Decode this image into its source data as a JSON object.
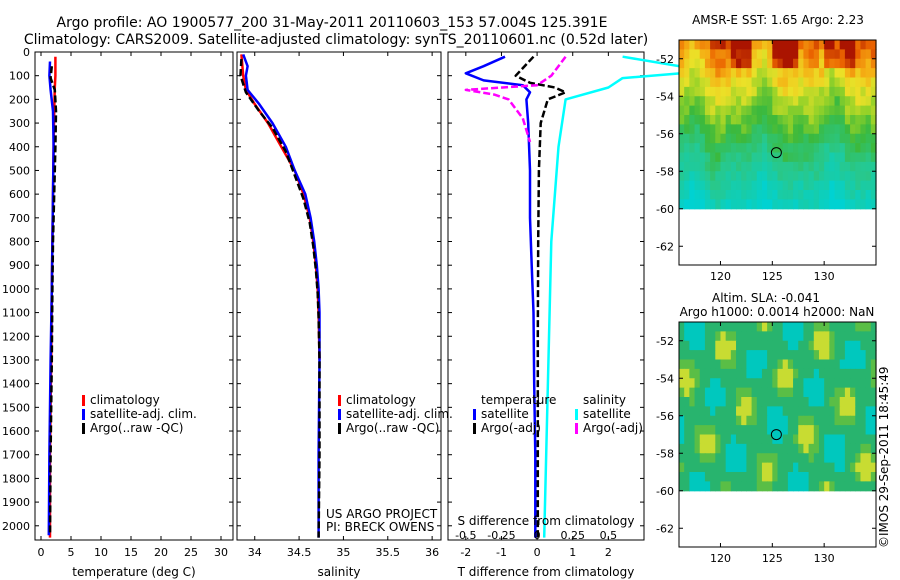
{
  "header": {
    "title_line1": "Argo profile: AO 1900577_200 31-May-2011 20110603_153 57.004S 125.391E",
    "title_line2": "Climatology: CARS2009. Satellite-adjusted climatology: synTS_20110601.nc (0.52d later)"
  },
  "credit": "©IMOS 29-Sep-2011 18:45:49",
  "colors": {
    "climatology": "#ff0000",
    "satellite": "#0000ff",
    "argo": "#000000",
    "salinity_satellite": "#00ffff",
    "salinity_argo": "#ff00ff"
  },
  "chart_data": [
    {
      "type": "line",
      "id": "temperature",
      "xlabel": "temperature (deg C)",
      "ylabel": "",
      "xlim": [
        -1,
        32
      ],
      "ylim": [
        0,
        2060
      ],
      "xticks": [
        0,
        5,
        10,
        15,
        20,
        25,
        30
      ],
      "yticks": [
        0,
        100,
        200,
        300,
        400,
        500,
        600,
        700,
        800,
        900,
        1000,
        1100,
        1200,
        1300,
        1400,
        1500,
        1600,
        1700,
        1800,
        1900,
        2000
      ],
      "legend": [
        "climatology",
        "satellite-adj. clim.",
        "Argo(..raw -QC)"
      ],
      "series": [
        {
          "name": "climatology",
          "x": [
            2.4,
            2.4,
            2.3,
            2.2,
            2.1,
            2.0,
            1.9,
            1.8,
            1.7,
            1.5,
            1.5
          ],
          "y": [
            20,
            100,
            150,
            250,
            400,
            600,
            800,
            1000,
            1300,
            1700,
            2050
          ]
        },
        {
          "name": "satellite-adj. clim.",
          "x": [
            1.5,
            1.4,
            1.6,
            2.0,
            2.1,
            2.0,
            1.9,
            1.8,
            1.6,
            1.4,
            1.3
          ],
          "y": [
            40,
            100,
            160,
            250,
            400,
            600,
            800,
            1000,
            1300,
            1700,
            2040
          ]
        },
        {
          "name": "Argo(..raw -QC)",
          "x": [
            1.8,
            1.6,
            2.3,
            2.5,
            2.4,
            2.2,
            2.0,
            1.9,
            1.8,
            1.6,
            1.5
          ],
          "y": [
            60,
            110,
            160,
            250,
            400,
            600,
            800,
            1000,
            1300,
            1700,
            2040
          ]
        }
      ]
    },
    {
      "type": "line",
      "id": "salinity",
      "xlabel": "salinity",
      "ylabel": "",
      "xlim": [
        33.8,
        36.1
      ],
      "ylim": [
        0,
        2060
      ],
      "xticks": [
        34,
        34.5,
        35,
        35.5,
        36
      ],
      "xticklabels": [
        "34",
        "34.5",
        "35",
        "35.5",
        "36"
      ],
      "legend": [
        "climatology",
        "satellite-adj. clim.",
        "Argo(..raw -QC)"
      ],
      "annotation": [
        "US ARGO PROJECT",
        "PI: BRECK OWENS"
      ],
      "series": [
        {
          "name": "climatology",
          "x": [
            33.85,
            33.87,
            33.9,
            34.0,
            34.15,
            34.3,
            34.45,
            34.55,
            34.62,
            34.66,
            34.69,
            34.71,
            34.72,
            34.73
          ],
          "y": [
            10,
            100,
            160,
            220,
            300,
            400,
            500,
            600,
            700,
            800,
            900,
            1000,
            1100,
            1300
          ]
        },
        {
          "name": "satellite-adj. clim.",
          "x": [
            33.87,
            33.92,
            33.9,
            33.92,
            34.05,
            34.2,
            34.35,
            34.45,
            34.57,
            34.63,
            34.67,
            34.7,
            34.72,
            34.73,
            34.73,
            34.72,
            34.72
          ],
          "y": [
            10,
            60,
            100,
            160,
            220,
            300,
            400,
            500,
            600,
            700,
            800,
            900,
            1000,
            1100,
            1300,
            1700,
            2050
          ]
        },
        {
          "name": "Argo(..raw -QC)",
          "x": [
            33.85,
            33.84,
            33.9,
            34.05,
            34.2,
            34.35,
            34.45,
            34.55,
            34.62,
            34.66,
            34.69,
            34.71,
            34.72,
            34.73,
            34.73,
            34.72
          ],
          "y": [
            30,
            100,
            170,
            250,
            320,
            420,
            520,
            620,
            720,
            820,
            920,
            1020,
            1120,
            1300,
            1700,
            2050
          ]
        }
      ]
    },
    {
      "type": "line",
      "id": "differences",
      "xlabel": "T difference from climatology",
      "xlabel_top": "S difference from climatology",
      "xlim": [
        -2.5,
        3
      ],
      "ylim": [
        0,
        2060
      ],
      "xticks": [
        -2,
        -1,
        0,
        1,
        2
      ],
      "s_ticks": [
        -0.5,
        -0.25,
        0,
        0.25,
        0.5
      ],
      "s_ticklabels": [
        "-0.5",
        "-0.25",
        "0",
        "0.25",
        "0.5"
      ],
      "s_scale": 4,
      "legend_temperature": {
        "title": "temperature",
        "items": [
          "satellite",
          "Argo(-adj)"
        ]
      },
      "legend_salinity": {
        "title": "salinity",
        "items": [
          "satellite",
          "Argo(-adj)"
        ]
      },
      "series": [
        {
          "name": "temperature satellite",
          "x": [
            -0.9,
            -1.5,
            -2.0,
            -1.5,
            -0.4,
            -0.2,
            -0.3,
            -0.25,
            -0.2,
            -0.2,
            -0.15,
            -0.1,
            -0.08,
            -0.05,
            -0.05
          ],
          "y": [
            20,
            60,
            90,
            120,
            140,
            170,
            200,
            300,
            500,
            700,
            900,
            1100,
            1400,
            1700,
            2050
          ]
        },
        {
          "name": "temperature Argo(-adj)",
          "x": [
            -0.1,
            -0.6,
            -0.2,
            0.5,
            0.8,
            0.3,
            0.1,
            0.05,
            0.03,
            0.02,
            0.02,
            0.02
          ],
          "y": [
            20,
            100,
            130,
            150,
            170,
            200,
            300,
            500,
            800,
            1200,
            1600,
            2050
          ]
        },
        {
          "name": "salinity satellite",
          "x": [
            0.6,
            1.2,
            0.6,
            0.5,
            0.2,
            0.15,
            0.1,
            0.05
          ],
          "y": [
            20,
            80,
            110,
            150,
            200,
            400,
            800,
            2050
          ]
        },
        {
          "name": "salinity Argo(-adj)",
          "x": [
            0.2,
            0.1,
            0.0,
            -0.5,
            -0.3,
            -0.2,
            -0.1,
            -0.05
          ],
          "y": [
            20,
            100,
            140,
            160,
            180,
            200,
            280,
            380
          ]
        }
      ]
    },
    {
      "type": "heatmap",
      "id": "sst-map",
      "title": "AMSR-E SST: 1.65 Argo: 2.23",
      "xlim": [
        116,
        135
      ],
      "ylim": [
        -63,
        -51
      ],
      "xticks": [
        120,
        125,
        130
      ],
      "yticks": [
        -52,
        -54,
        -56,
        -58,
        -60,
        -62
      ],
      "xticklabels": [
        "120",
        "125",
        "130"
      ],
      "yticklabels": [
        "-52",
        "-54",
        "-56",
        "-58",
        "-60",
        "-62"
      ],
      "data_lat_range": [
        -60,
        -51
      ],
      "marker": {
        "lon": 125.391,
        "lat": -57.004
      }
    },
    {
      "type": "heatmap",
      "id": "sla-map",
      "title": "Altim. SLA: -0.041",
      "subtitle": "Argo h1000: 0.0014 h2000: NaN",
      "xlim": [
        116,
        135
      ],
      "ylim": [
        -63,
        -51
      ],
      "xticks": [
        120,
        125,
        130
      ],
      "yticks": [
        -52,
        -54,
        -56,
        -58,
        -60,
        -62
      ],
      "xticklabels": [
        "120",
        "125",
        "130"
      ],
      "yticklabels": [
        "-52",
        "-54",
        "-56",
        "-58",
        "-60",
        "-62"
      ],
      "data_lat_range": [
        -60,
        -51
      ],
      "marker": {
        "lon": 125.391,
        "lat": -57.004
      }
    }
  ]
}
